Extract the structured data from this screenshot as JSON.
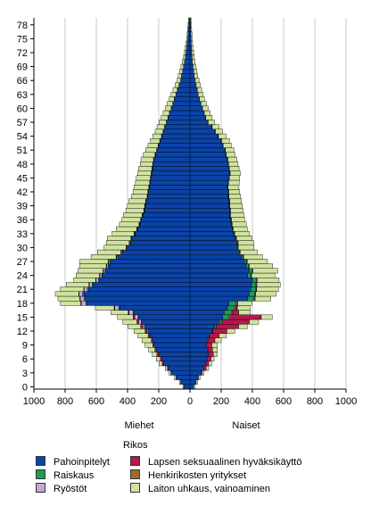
{
  "chart_data": {
    "type": "bar",
    "orientation": "horizontal-population-pyramid",
    "subtitle_left": "Miehet",
    "subtitle_right": "Naiset",
    "x_ticks": [
      "1000",
      "800",
      "600",
      "400",
      "200",
      "0",
      "200",
      "400",
      "600",
      "800",
      "1000"
    ],
    "xlim": [
      -1000,
      1000
    ],
    "y_ticks": [
      "0",
      "3",
      "6",
      "9",
      "12",
      "15",
      "18",
      "21",
      "24",
      "27",
      "30",
      "33",
      "36",
      "39",
      "42",
      "45",
      "48",
      "51",
      "54",
      "57",
      "60",
      "63",
      "66",
      "69",
      "72",
      "75",
      "78"
    ],
    "ages": [
      0,
      1,
      2,
      3,
      4,
      5,
      6,
      7,
      8,
      9,
      10,
      11,
      12,
      13,
      14,
      15,
      16,
      17,
      18,
      19,
      20,
      21,
      22,
      23,
      24,
      25,
      26,
      27,
      28,
      29,
      30,
      31,
      32,
      33,
      34,
      35,
      36,
      37,
      38,
      39,
      40,
      41,
      42,
      43,
      44,
      45,
      46,
      47,
      48,
      49,
      50,
      51,
      52,
      53,
      54,
      55,
      56,
      57,
      58,
      59,
      60,
      61,
      62,
      63,
      64,
      65,
      66,
      67,
      68,
      69,
      70,
      71,
      72,
      73,
      74,
      75,
      76,
      77,
      78,
      79
    ],
    "legend_title": "Rikos",
    "series": [
      {
        "name": "Pahoinpitelyt",
        "color": "#0b43a6",
        "side": "both",
        "men": [
          40,
          60,
          90,
          120,
          140,
          170,
          180,
          200,
          215,
          230,
          240,
          255,
          270,
          290,
          310,
          330,
          360,
          450,
          660,
          670,
          680,
          650,
          620,
          580,
          560,
          540,
          520,
          510,
          460,
          430,
          400,
          380,
          370,
          350,
          335,
          320,
          310,
          300,
          290,
          285,
          280,
          270,
          265,
          260,
          255,
          250,
          245,
          240,
          235,
          230,
          220,
          210,
          200,
          190,
          180,
          170,
          160,
          150,
          140,
          130,
          120,
          110,
          100,
          90,
          80,
          70,
          60,
          55,
          48,
          42,
          36,
          30,
          26,
          22,
          18,
          14,
          12,
          10,
          8,
          6
        ],
        "women": [
          25,
          40,
          55,
          70,
          90,
          100,
          110,
          120,
          115,
          105,
          115,
          125,
          140,
          160,
          190,
          210,
          220,
          240,
          250,
          370,
          380,
          390,
          395,
          400,
          370,
          380,
          360,
          350,
          330,
          310,
          300,
          300,
          290,
          280,
          270,
          265,
          260,
          255,
          255,
          250,
          250,
          245,
          245,
          240,
          245,
          250,
          255,
          250,
          245,
          240,
          230,
          225,
          210,
          200,
          180,
          160,
          140,
          115,
          100,
          90,
          80,
          70,
          60,
          52,
          46,
          40,
          34,
          28,
          24,
          20,
          16,
          14,
          12,
          10,
          8,
          7,
          6,
          5,
          4,
          3
        ]
      },
      {
        "name": "Raiskaus",
        "color": "#1f9a57",
        "side": "both",
        "men": [
          0,
          0,
          0,
          0,
          0,
          0,
          0,
          0,
          0,
          0,
          0,
          0,
          0,
          1,
          2,
          3,
          5,
          7,
          8,
          8,
          8,
          8,
          7,
          6,
          5,
          5,
          5,
          4,
          4,
          4,
          3,
          3,
          3,
          3,
          2,
          2,
          2,
          2,
          2,
          2,
          2,
          2,
          2,
          1,
          1,
          1,
          1,
          1,
          1,
          1,
          1,
          1,
          1,
          1,
          1,
          1,
          1,
          0,
          0,
          0,
          0,
          0,
          0,
          0,
          0,
          0,
          0,
          0,
          0,
          0,
          0,
          0,
          0,
          0,
          0,
          0,
          0,
          0,
          0,
          0
        ],
        "women": [
          0,
          0,
          0,
          0,
          0,
          0,
          0,
          0,
          0,
          0,
          0,
          0,
          4,
          8,
          14,
          40,
          45,
          45,
          45,
          40,
          35,
          30,
          28,
          25,
          20,
          18,
          15,
          12,
          10,
          8,
          7,
          6,
          5,
          4,
          4,
          3,
          3,
          2,
          2,
          2,
          2,
          2,
          1,
          1,
          1,
          1,
          1,
          1,
          1,
          1,
          1,
          1,
          1,
          1,
          1,
          1,
          1,
          0,
          0,
          0,
          0,
          0,
          0,
          0,
          0,
          0,
          0,
          0,
          0,
          0,
          0,
          0,
          0,
          0,
          0,
          0,
          0,
          0,
          0,
          0
        ]
      },
      {
        "name": "Ryöstöt",
        "color": "#c6a6d6",
        "side": "both",
        "men": [
          0,
          0,
          0,
          0,
          0,
          0,
          0,
          0,
          0,
          0,
          0,
          3,
          6,
          10,
          15,
          20,
          25,
          25,
          28,
          25,
          22,
          20,
          18,
          15,
          12,
          10,
          9,
          8,
          7,
          6,
          5,
          5,
          4,
          4,
          3,
          3,
          3,
          3,
          2,
          2,
          2,
          2,
          2,
          2,
          2,
          2,
          2,
          2,
          2,
          2,
          2,
          2,
          2,
          2,
          1,
          1,
          1,
          1,
          1,
          1,
          1,
          1,
          1,
          1,
          1,
          1,
          0,
          0,
          0,
          0,
          0,
          0,
          0,
          0,
          0,
          0,
          0,
          0,
          0,
          0
        ],
        "women": [
          0,
          0,
          0,
          0,
          0,
          0,
          0,
          0,
          0,
          0,
          0,
          2,
          3,
          4,
          5,
          6,
          6,
          6,
          6,
          5,
          5,
          5,
          4,
          4,
          3,
          3,
          3,
          3,
          2,
          2,
          2,
          2,
          2,
          2,
          2,
          2,
          2,
          2,
          2,
          2,
          2,
          2,
          2,
          2,
          1,
          1,
          1,
          1,
          1,
          1,
          1,
          1,
          1,
          1,
          1,
          1,
          1,
          1,
          1,
          1,
          1,
          1,
          1,
          1,
          1,
          0,
          0,
          0,
          0,
          0,
          0,
          0,
          0,
          0,
          0,
          0,
          0,
          0,
          0,
          0
        ]
      },
      {
        "name": "Lapsen seksuaalinen hyväksikäyttö",
        "color": "#b8164c",
        "side": "both",
        "men": [
          0,
          0,
          0,
          2,
          4,
          8,
          10,
          12,
          10,
          8,
          8,
          10,
          12,
          15,
          12,
          10,
          4,
          2,
          2,
          1,
          1,
          1,
          1,
          1,
          1,
          1,
          1,
          1,
          1,
          1,
          0,
          0,
          0,
          0,
          0,
          0,
          0,
          0,
          0,
          0,
          0,
          0,
          0,
          0,
          0,
          0,
          0,
          0,
          0,
          0,
          0,
          0,
          0,
          0,
          0,
          0,
          0,
          0,
          0,
          0,
          0,
          0,
          0,
          0,
          0,
          0,
          0,
          0,
          0,
          0,
          0,
          0,
          0,
          0,
          0,
          0,
          0,
          0,
          0,
          0
        ],
        "women": [
          0,
          0,
          0,
          8,
          15,
          20,
          25,
          30,
          30,
          35,
          45,
          60,
          90,
          140,
          170,
          200,
          40,
          12,
          4,
          2,
          1,
          1,
          1,
          1,
          1,
          1,
          1,
          1,
          1,
          1,
          0,
          0,
          0,
          0,
          0,
          0,
          0,
          0,
          0,
          0,
          0,
          0,
          0,
          0,
          0,
          0,
          0,
          0,
          0,
          0,
          0,
          0,
          0,
          0,
          0,
          0,
          0,
          0,
          0,
          0,
          0,
          0,
          0,
          0,
          0,
          0,
          0,
          0,
          0,
          0,
          0,
          0,
          0,
          0,
          0,
          0,
          0,
          0,
          0,
          0
        ]
      },
      {
        "name": "Henkirikosten yritykset",
        "color": "#9c6a2e",
        "side": "both",
        "men": [
          0,
          0,
          0,
          0,
          0,
          0,
          0,
          0,
          0,
          0,
          0,
          0,
          0,
          0,
          1,
          1,
          2,
          2,
          2,
          2,
          2,
          2,
          2,
          2,
          2,
          2,
          2,
          2,
          2,
          2,
          2,
          2,
          2,
          2,
          2,
          2,
          2,
          2,
          2,
          2,
          1,
          1,
          1,
          1,
          1,
          1,
          1,
          1,
          1,
          1,
          1,
          1,
          1,
          1,
          1,
          1,
          1,
          1,
          1,
          1,
          0,
          0,
          0,
          0,
          0,
          0,
          0,
          0,
          0,
          0,
          0,
          0,
          0,
          0,
          0,
          0,
          0,
          0,
          0,
          0
        ],
        "women": [
          0,
          0,
          0,
          0,
          0,
          0,
          0,
          0,
          0,
          0,
          0,
          0,
          0,
          0,
          1,
          1,
          1,
          1,
          1,
          1,
          1,
          1,
          1,
          1,
          1,
          1,
          1,
          1,
          1,
          1,
          1,
          1,
          1,
          1,
          1,
          1,
          1,
          1,
          1,
          1,
          1,
          1,
          1,
          1,
          1,
          1,
          1,
          1,
          1,
          1,
          1,
          1,
          1,
          1,
          1,
          1,
          1,
          1,
          1,
          1,
          0,
          0,
          0,
          0,
          0,
          0,
          0,
          0,
          0,
          0,
          0,
          0,
          0,
          0,
          0,
          0,
          0,
          0,
          0,
          0
        ]
      },
      {
        "name": "Laiton uhkaus, vainoaminen",
        "color": "#cfe29e",
        "side": "both",
        "men": [
          5,
          8,
          10,
          12,
          15,
          20,
          25,
          30,
          40,
          50,
          60,
          65,
          70,
          80,
          90,
          100,
          110,
          120,
          130,
          140,
          150,
          150,
          145,
          140,
          150,
          160,
          170,
          180,
          160,
          150,
          140,
          145,
          150,
          140,
          130,
          125,
          120,
          120,
          115,
          110,
          105,
          100,
          95,
          95,
          90,
          90,
          85,
          85,
          80,
          80,
          75,
          70,
          65,
          60,
          55,
          50,
          48,
          45,
          42,
          40,
          38,
          35,
          32,
          30,
          28,
          25,
          22,
          20,
          18,
          16,
          14,
          12,
          10,
          9,
          8,
          7,
          6,
          5,
          4,
          3
        ],
        "women": [
          5,
          8,
          10,
          12,
          15,
          18,
          20,
          25,
          30,
          35,
          40,
          45,
          50,
          55,
          60,
          70,
          75,
          80,
          90,
          100,
          130,
          140,
          150,
          140,
          150,
          160,
          150,
          130,
          120,
          110,
          100,
          100,
          100,
          95,
          90,
          90,
          85,
          85,
          80,
          80,
          75,
          75,
          70,
          70,
          68,
          65,
          65,
          62,
          60,
          58,
          56,
          54,
          52,
          50,
          48,
          46,
          44,
          42,
          40,
          38,
          36,
          34,
          32,
          30,
          28,
          26,
          24,
          22,
          20,
          18,
          16,
          14,
          12,
          10,
          9,
          8,
          7,
          6,
          5,
          4
        ]
      }
    ]
  }
}
